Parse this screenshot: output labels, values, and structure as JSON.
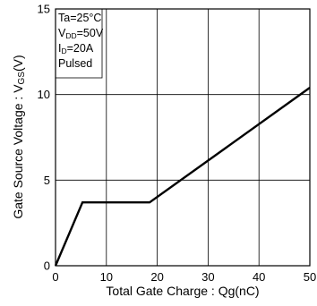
{
  "chart_data": {
    "type": "line",
    "title": "",
    "xlabel": "Total Gate Charge : Qg(nC)",
    "ylabel": "Gate Source Voltage : VGS(V)",
    "xlim": [
      0,
      50
    ],
    "ylim": [
      0,
      15
    ],
    "xticks": [
      "0",
      "10",
      "20",
      "30",
      "40",
      "50"
    ],
    "yticks": [
      "0",
      "5",
      "10",
      "15"
    ],
    "grid": true,
    "series": [
      {
        "x": [
          0,
          5.3,
          18.5,
          50
        ],
        "y": [
          0,
          3.7,
          3.7,
          10.4
        ]
      }
    ],
    "conditions": [
      {
        "main": "Ta=25°C",
        "sub": "",
        "tail": ""
      },
      {
        "main": "V",
        "sub": "DD",
        "tail": "=50V"
      },
      {
        "main": "I",
        "sub": "D",
        "tail": "=20A"
      },
      {
        "main": "Pulsed",
        "sub": "",
        "tail": ""
      }
    ]
  },
  "colors": {
    "line": "#000000",
    "grid": "#000000",
    "background": "#ffffff"
  }
}
